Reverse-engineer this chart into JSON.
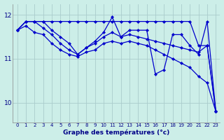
{
  "xlabel": "Graphe des températures (°c)",
  "background_color": "#cceee8",
  "line_color": "#0000cc",
  "hours": [
    0,
    1,
    2,
    3,
    4,
    5,
    6,
    7,
    8,
    9,
    10,
    11,
    12,
    13,
    14,
    15,
    16,
    17,
    18,
    19,
    20,
    21,
    22,
    23
  ],
  "series": [
    [
      11.65,
      11.85,
      11.85,
      11.85,
      11.85,
      11.85,
      11.85,
      11.85,
      11.85,
      11.85,
      11.85,
      11.85,
      11.85,
      11.85,
      11.85,
      11.85,
      11.85,
      11.85,
      11.85,
      11.85,
      11.85,
      11.3,
      11.3,
      9.8
    ],
    [
      11.65,
      11.85,
      11.85,
      11.85,
      11.65,
      11.5,
      11.35,
      11.1,
      11.25,
      11.4,
      11.6,
      11.95,
      11.5,
      11.65,
      11.65,
      11.65,
      10.65,
      10.75,
      11.55,
      11.55,
      11.3,
      11.1,
      11.85,
      9.8
    ],
    [
      11.65,
      11.85,
      11.85,
      11.7,
      11.55,
      11.35,
      11.2,
      11.1,
      11.25,
      11.35,
      11.5,
      11.6,
      11.5,
      11.55,
      11.5,
      11.45,
      11.4,
      11.35,
      11.3,
      11.25,
      11.2,
      11.15,
      11.3,
      9.8
    ],
    [
      11.65,
      11.75,
      11.6,
      11.55,
      11.35,
      11.2,
      11.1,
      11.05,
      11.15,
      11.2,
      11.35,
      11.4,
      11.35,
      11.4,
      11.35,
      11.3,
      11.2,
      11.1,
      11.0,
      10.9,
      10.8,
      10.6,
      10.45,
      9.8
    ]
  ],
  "ylim": [
    9.55,
    12.25
  ],
  "yticks": [
    10,
    11,
    12
  ],
  "xlim": [
    -0.5,
    23.5
  ],
  "xticks": [
    0,
    1,
    2,
    3,
    4,
    5,
    6,
    7,
    8,
    9,
    10,
    11,
    12,
    13,
    14,
    15,
    16,
    17,
    18,
    19,
    20,
    21,
    22,
    23
  ],
  "xtick_labels": [
    "0",
    "1",
    "2",
    "3",
    "4",
    "5",
    "6",
    "7",
    "8",
    "9",
    "10",
    "11",
    "12",
    "13",
    "14",
    "15",
    "16",
    "17",
    "18",
    "19",
    "20",
    "21",
    "22",
    "23"
  ],
  "grid_color": "#aacccc",
  "markersize": 2.2,
  "linewidth": 0.9
}
